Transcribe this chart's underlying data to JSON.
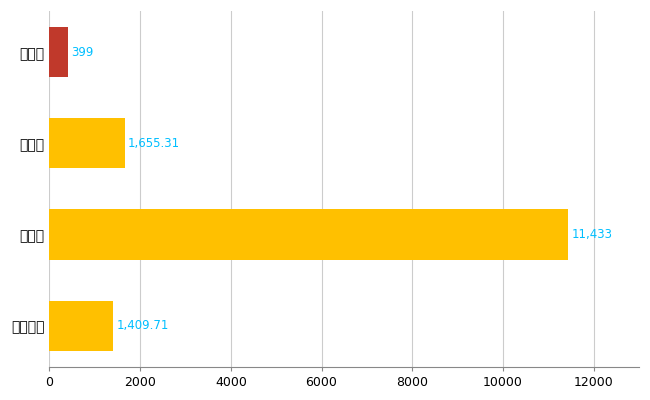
{
  "categories": [
    "全国平均",
    "県最大",
    "県平均",
    "長泉町"
  ],
  "values": [
    1409.71,
    11433,
    1655.31,
    399
  ],
  "bar_colors": [
    "#FFC000",
    "#FFC000",
    "#FFC000",
    "#C0392B"
  ],
  "label_texts": [
    "1,409.71",
    "11,433",
    "1,655.31",
    "399"
  ],
  "xlim": [
    0,
    13000
  ],
  "xticks": [
    0,
    2000,
    4000,
    6000,
    8000,
    10000,
    12000
  ],
  "xtick_labels": [
    "0",
    "2000",
    "4000",
    "6000",
    "8000",
    "10000",
    "12000"
  ],
  "background_color": "#FFFFFF",
  "grid_color": "#CCCCCC",
  "label_color": "#00BFFF",
  "bar_height": 0.55,
  "label_fontsize": 8.5,
  "tick_fontsize": 9,
  "ytick_fontsize": 10
}
